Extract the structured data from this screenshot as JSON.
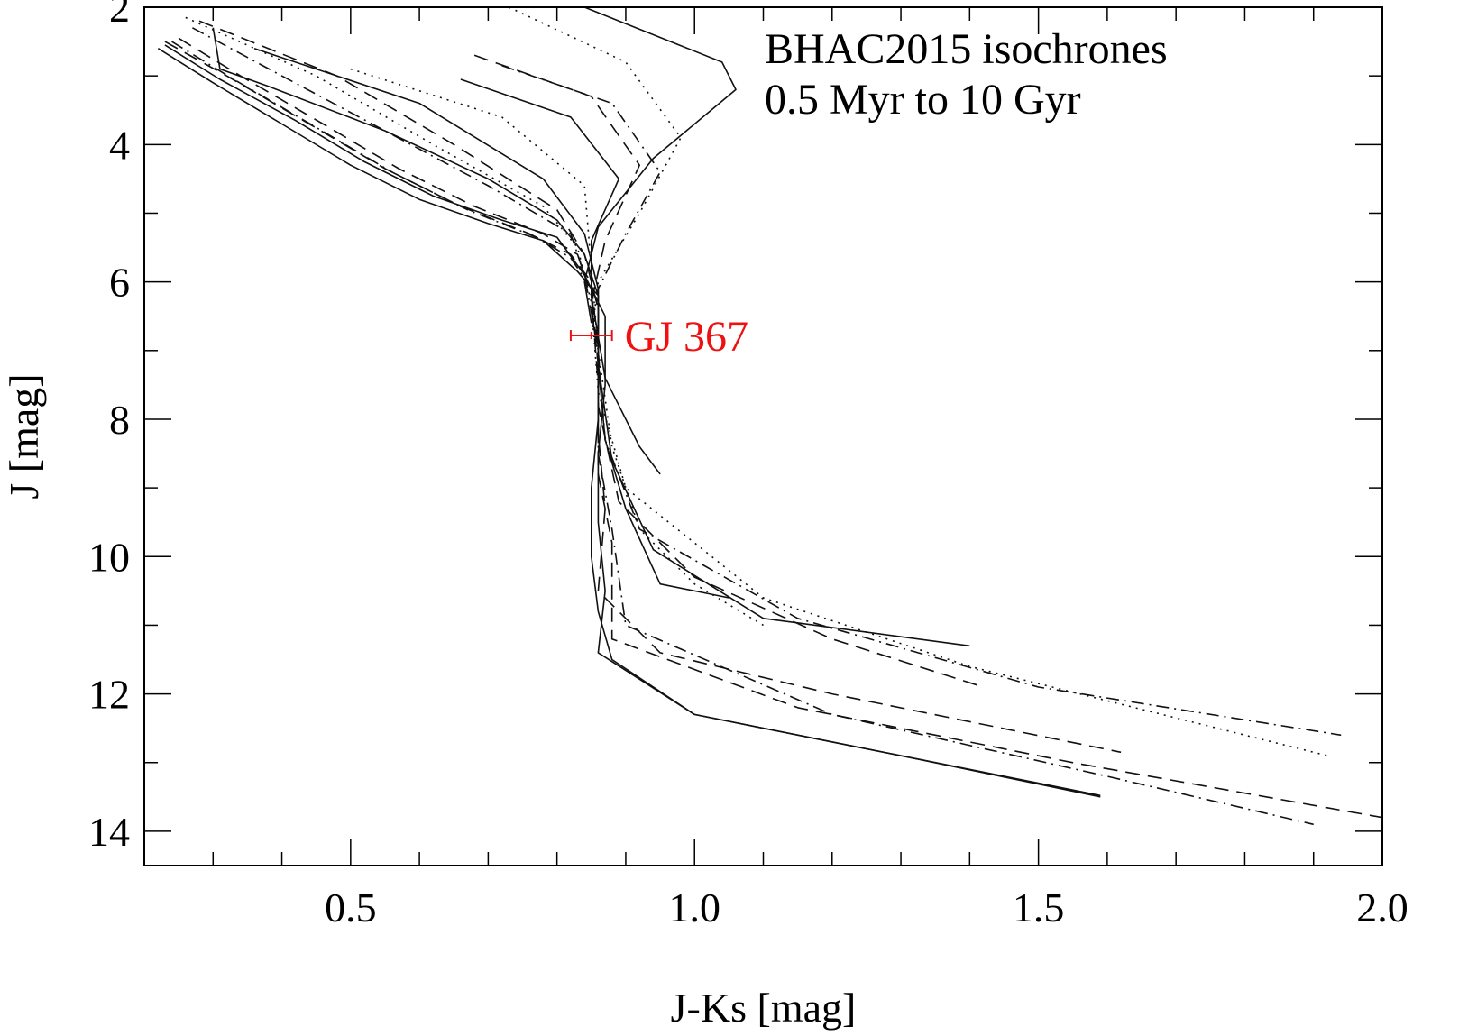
{
  "chart_data": {
    "type": "line",
    "title": "",
    "xlabel": "J-Ks [mag]",
    "ylabel": "J [mag]",
    "xlim": [
      0.2,
      2.0
    ],
    "ylim": [
      14.5,
      2.0
    ],
    "y_inverted": true,
    "grid": false,
    "x_ticks": [
      0.5,
      1.0,
      1.5,
      2.0
    ],
    "x_tick_labels": [
      "0.5",
      "1.0",
      "1.5",
      "2.0"
    ],
    "x_minor_step": 0.1,
    "y_ticks": [
      2,
      4,
      6,
      8,
      10,
      12,
      14
    ],
    "y_tick_labels": [
      "2",
      "4",
      "6",
      "8",
      "10",
      "12",
      "14"
    ],
    "y_minor_step": 1,
    "annotation_lines": [
      "BHAC2015 isochrones",
      "0.5 Myr to 10 Gyr"
    ],
    "star": {
      "label": "GJ 367",
      "color": "#ee1111",
      "x": 0.85,
      "y": 6.78,
      "x_err": 0.03
    },
    "series": [
      {
        "style": "solid",
        "x": [
          0.22,
          0.3,
          0.4,
          0.5,
          0.6,
          0.7,
          0.78,
          0.83,
          0.86,
          0.86,
          0.86,
          0.85,
          0.85,
          0.86,
          0.88,
          1.0,
          1.3,
          1.59
        ],
        "y": [
          2.6,
          3.1,
          3.7,
          4.3,
          4.8,
          5.15,
          5.4,
          5.85,
          6.2,
          7.0,
          8.0,
          9.0,
          10.0,
          10.8,
          11.5,
          12.3,
          12.9,
          13.5
        ]
      },
      {
        "style": "solid",
        "x": [
          0.23,
          0.31,
          0.42,
          0.52,
          0.62,
          0.72,
          0.8,
          0.84,
          0.87,
          0.87,
          0.86,
          0.86,
          0.87,
          0.86,
          1.0,
          1.59
        ],
        "y": [
          2.55,
          3.05,
          3.65,
          4.25,
          4.75,
          5.1,
          5.35,
          5.9,
          6.5,
          7.5,
          8.5,
          9.5,
          10.5,
          11.4,
          12.3,
          13.48
        ]
      },
      {
        "style": "dashed",
        "x": [
          0.23,
          0.32,
          0.44,
          0.55,
          0.66,
          0.76,
          0.82,
          0.85,
          0.86,
          0.86,
          0.87,
          0.86,
          0.95,
          1.2,
          1.62
        ],
        "y": [
          2.5,
          3.0,
          3.7,
          4.35,
          4.9,
          5.3,
          5.6,
          6.0,
          7.0,
          8.2,
          9.3,
          10.5,
          11.4,
          12.0,
          12.85
        ]
      },
      {
        "style": "dashdot",
        "x": [
          0.24,
          0.33,
          0.45,
          0.56,
          0.67,
          0.77,
          0.82,
          0.85,
          0.86,
          0.86,
          0.88,
          0.9,
          1.2,
          1.6,
          1.9
        ],
        "y": [
          2.5,
          3.05,
          3.75,
          4.4,
          4.95,
          5.35,
          5.65,
          6.1,
          7.2,
          8.5,
          9.6,
          11.0,
          12.3,
          13.2,
          13.9
        ]
      },
      {
        "style": "dashed",
        "x": [
          0.25,
          0.34,
          0.46,
          0.57,
          0.68,
          0.78,
          0.83,
          0.85,
          0.86,
          0.86,
          0.88,
          0.88,
          1.15,
          1.55,
          2.0
        ],
        "y": [
          2.45,
          3.0,
          3.7,
          4.35,
          4.9,
          5.3,
          5.6,
          6.2,
          7.5,
          8.8,
          9.8,
          11.2,
          12.2,
          13.0,
          13.8
        ]
      },
      {
        "style": "solid",
        "x": [
          0.3,
          0.31,
          0.38,
          0.55,
          0.7,
          0.8,
          0.84,
          0.86,
          0.86,
          0.87,
          0.9,
          0.95,
          1.05
        ],
        "y": [
          2.3,
          2.9,
          3.15,
          3.8,
          4.5,
          5.1,
          5.6,
          6.2,
          7.2,
          8.3,
          9.3,
          10.4,
          10.6
        ]
      },
      {
        "style": "dashdot",
        "x": [
          0.27,
          0.4,
          0.55,
          0.7,
          0.82,
          0.84,
          0.86,
          0.87,
          0.92,
          1.15,
          1.5,
          1.94
        ],
        "y": [
          2.3,
          3.0,
          3.8,
          4.6,
          5.3,
          5.9,
          7.0,
          8.3,
          9.6,
          10.9,
          11.9,
          12.6
        ]
      },
      {
        "style": "dotted",
        "x": [
          0.26,
          0.45,
          0.62,
          0.78,
          0.83,
          0.85,
          0.86,
          0.9,
          1.1,
          1.4,
          1.92
        ],
        "y": [
          2.15,
          3.0,
          4.0,
          4.9,
          5.5,
          6.3,
          7.6,
          9.0,
          10.6,
          11.6,
          12.9
        ]
      },
      {
        "style": "dashed",
        "x": [
          0.28,
          0.48,
          0.65,
          0.8,
          0.84,
          0.86,
          0.86,
          0.89,
          1.0,
          1.2,
          1.42
        ],
        "y": [
          2.2,
          3.0,
          4.0,
          4.95,
          5.6,
          6.4,
          7.8,
          9.2,
          10.3,
          11.2,
          11.9
        ]
      },
      {
        "style": "solid",
        "x": [
          0.36,
          0.6,
          0.78,
          0.84,
          0.86,
          0.86,
          0.88,
          0.94,
          1.1,
          1.4
        ],
        "y": [
          2.6,
          3.4,
          4.5,
          5.3,
          6.1,
          7.2,
          8.6,
          9.9,
          10.9,
          11.3
        ]
      },
      {
        "style": "dotted",
        "x": [
          0.5,
          0.72,
          0.84,
          0.85,
          0.86,
          0.88,
          0.92,
          1.0,
          1.1
        ],
        "y": [
          2.9,
          3.6,
          4.6,
          5.8,
          7.0,
          8.4,
          9.6,
          10.4,
          11.0
        ]
      },
      {
        "style": "solid",
        "x": [
          0.66,
          0.82,
          0.89,
          0.85,
          0.85,
          0.87,
          0.92,
          0.95
        ],
        "y": [
          3.05,
          3.6,
          4.5,
          5.4,
          6.2,
          7.4,
          8.4,
          8.8
        ]
      },
      {
        "style": "dashed",
        "x": [
          0.68,
          0.85,
          0.92,
          0.87,
          0.85,
          0.86
        ],
        "y": [
          2.7,
          3.3,
          4.3,
          5.4,
          6.3,
          7.2
        ]
      },
      {
        "style": "dashdot",
        "x": [
          0.72,
          0.88,
          0.95,
          0.9,
          0.86,
          0.86
        ],
        "y": [
          2.85,
          3.4,
          4.4,
          5.3,
          6.1,
          6.9
        ]
      },
      {
        "style": "dotted",
        "x": [
          0.73,
          0.9,
          0.98,
          0.92,
          0.86,
          0.85
        ],
        "y": [
          2.0,
          2.8,
          3.9,
          5.0,
          6.0,
          6.8
        ]
      },
      {
        "style": "solid",
        "x": [
          0.84,
          1.04,
          1.06,
          0.94,
          0.86,
          0.84,
          0.85
        ],
        "y": [
          2.0,
          2.8,
          3.2,
          4.2,
          5.2,
          6.0,
          6.6
        ]
      }
    ]
  }
}
